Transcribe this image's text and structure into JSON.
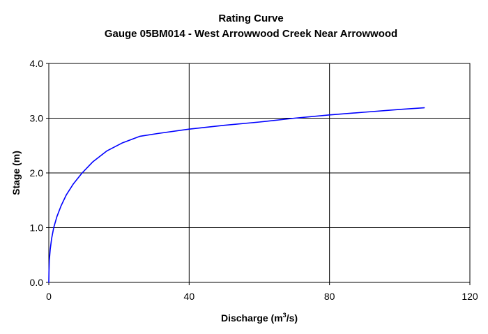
{
  "chart_data": {
    "type": "line",
    "title": "Rating Curve",
    "subtitle": "Gauge 05BM014 - West Arrowwood Creek Near Arrowwood",
    "xlabel": "Discharge (m",
    "xlabel_sup": "3",
    "xlabel_tail": "/s)",
    "ylabel": "Stage (m)",
    "xlim": [
      0,
      120
    ],
    "ylim": [
      0,
      4
    ],
    "x_ticks": [
      "0",
      "40",
      "80",
      "120"
    ],
    "y_ticks": [
      "0.0",
      "1.0",
      "2.0",
      "3.0",
      "4.0"
    ],
    "grid": true,
    "series": [
      {
        "color": "#0000ff",
        "points": [
          [
            0.0,
            0.0
          ],
          [
            0.05,
            0.2
          ],
          [
            0.15,
            0.4
          ],
          [
            0.4,
            0.6
          ],
          [
            0.8,
            0.8
          ],
          [
            1.4,
            1.0
          ],
          [
            2.3,
            1.2
          ],
          [
            3.5,
            1.4
          ],
          [
            5.0,
            1.6
          ],
          [
            7.0,
            1.8
          ],
          [
            9.5,
            2.0
          ],
          [
            12.5,
            2.2
          ],
          [
            16.5,
            2.4
          ],
          [
            21.0,
            2.55
          ],
          [
            26.0,
            2.67
          ],
          [
            31.0,
            2.72
          ],
          [
            40.0,
            2.8
          ],
          [
            50.0,
            2.87
          ],
          [
            60.0,
            2.93
          ],
          [
            70.0,
            3.0
          ],
          [
            80.0,
            3.06
          ],
          [
            90.0,
            3.11
          ],
          [
            100.0,
            3.16
          ],
          [
            107.0,
            3.19
          ]
        ]
      }
    ]
  },
  "colors": {
    "line": "#0000ff",
    "axis": "#000000",
    "grid": "#000000",
    "background": "#ffffff"
  }
}
